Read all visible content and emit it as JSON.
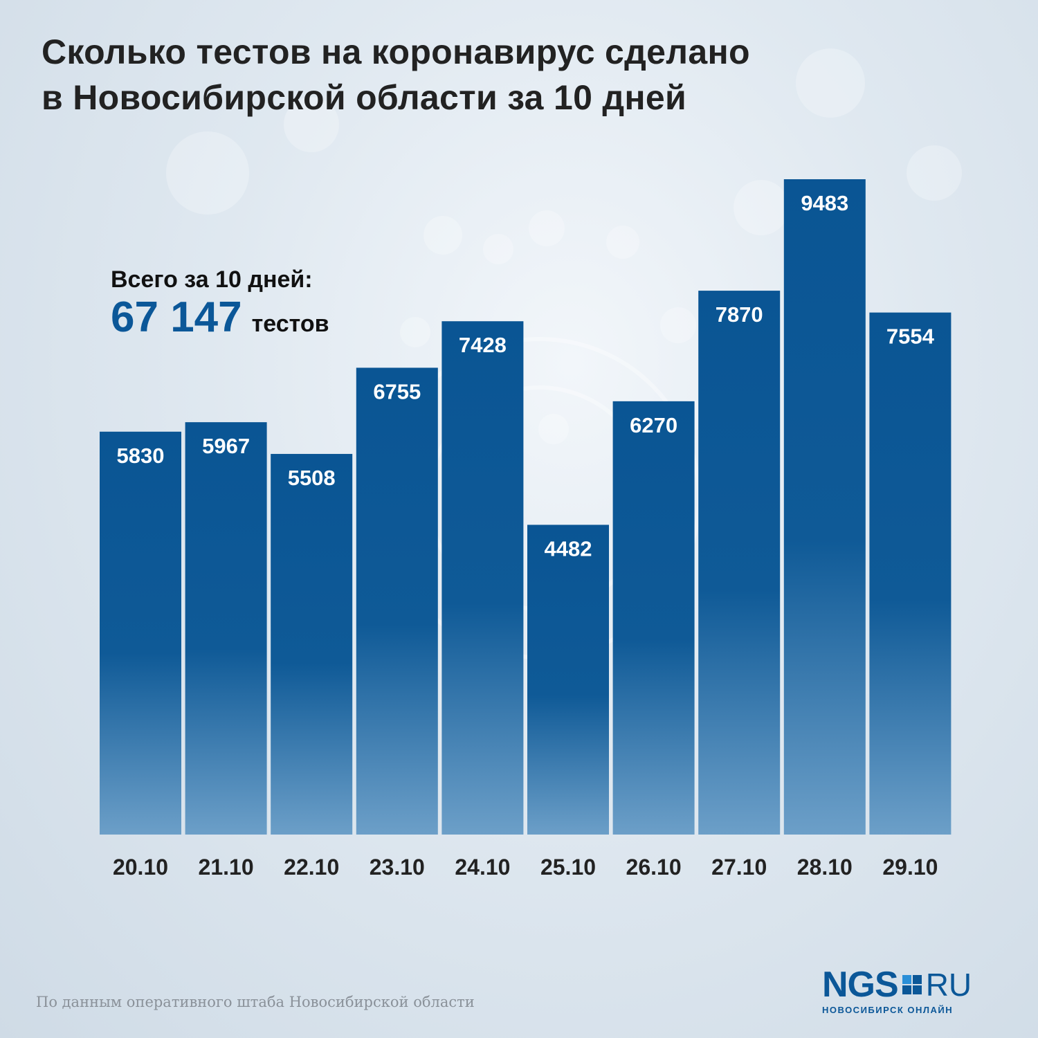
{
  "title_lines": [
    "Сколько тестов на коронавирус сделано",
    "в Новосибирской области за 10 дней"
  ],
  "total": {
    "label": "Всего за 10 дней:",
    "value": "67 147",
    "unit": "тестов"
  },
  "chart_data": {
    "type": "bar",
    "categories": [
      "20.10",
      "21.10",
      "22.10",
      "23.10",
      "24.10",
      "25.10",
      "26.10",
      "27.10",
      "28.10",
      "29.10"
    ],
    "values": [
      5830,
      5967,
      5508,
      6755,
      7428,
      4482,
      6270,
      7870,
      9483,
      7554
    ],
    "title": "Сколько тестов на коронавирус сделано в Новосибирской области за 10 дней",
    "xlabel": "",
    "ylabel": "",
    "ylim": [
      0,
      9483
    ],
    "grid": false,
    "legend": "none",
    "data_labels": "inside-top",
    "colors": {
      "bar_top": "#0a5594",
      "bar_bottom": "#6c9fc8",
      "label": "#ffffff",
      "tick": "#222222"
    }
  },
  "source": "По данным оперативного штаба Новосибирской области",
  "logo": {
    "main": "NGS",
    "ru": "RU",
    "sub": "НОВОСИБИРСК ОНЛАЙН"
  }
}
